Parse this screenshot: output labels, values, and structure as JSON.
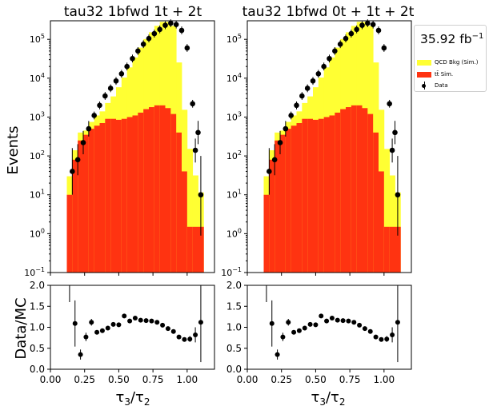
{
  "colors": {
    "qcd": "#ffff33",
    "ttbar": "#ff3311",
    "data": "#000000"
  },
  "legend": {
    "lumi": "35.92 fb",
    "lumi_unit_exp": "−1",
    "entries": [
      {
        "label": "QCD Bkg (Sim.)",
        "kind": "qcd"
      },
      {
        "label": "tt̄ Sim.",
        "kind": "ttbar"
      },
      {
        "label": "Data",
        "kind": "data"
      }
    ]
  },
  "ylabel_top": "Events",
  "ylabel_bottom": "Data/MC",
  "xlabel": "τ3/τ2",
  "chart_data": [
    {
      "type": "bar",
      "title": "tau32  1bfwd 1t + 2t",
      "scale": "log",
      "ylim": [
        0.1,
        300000
      ],
      "xlim": [
        0.0,
        1.2
      ],
      "bin_edges": [
        0.12,
        0.16,
        0.2,
        0.24,
        0.28,
        0.32,
        0.36,
        0.4,
        0.44,
        0.48,
        0.52,
        0.56,
        0.6,
        0.64,
        0.68,
        0.72,
        0.76,
        0.8,
        0.84,
        0.88,
        0.92,
        0.96,
        1.0,
        1.04,
        1.08,
        1.12
      ],
      "series": [
        {
          "name": "QCD Bkg (Sim.)",
          "values": [
            20,
            60,
            150,
            100,
            250,
            500,
            700,
            1400,
            2500,
            5000,
            9500,
            18000,
            33000,
            60000,
            100000,
            150000,
            220000,
            280000,
            280000,
            220000,
            25000,
            1500,
            150,
            30,
            10
          ]
        },
        {
          "name": "tt̄ Sim.",
          "values": [
            10,
            80,
            250,
            350,
            500,
            600,
            700,
            900,
            900,
            850,
            900,
            1000,
            1100,
            1300,
            1600,
            1800,
            2000,
            2000,
            1700,
            1200,
            400,
            40,
            1.5,
            1.5,
            1.5
          ]
        },
        {
          "name": "Data",
          "x": [
            0.16,
            0.2,
            0.24,
            0.28,
            0.32,
            0.36,
            0.4,
            0.44,
            0.48,
            0.52,
            0.56,
            0.6,
            0.64,
            0.68,
            0.72,
            0.76,
            0.8,
            0.84,
            0.88,
            0.92,
            0.96,
            1.0,
            1.04,
            1.08
          ],
          "values": [
            40,
            80,
            220,
            500,
            1100,
            2000,
            3500,
            5500,
            8500,
            13000,
            20000,
            32000,
            50000,
            75000,
            105000,
            140000,
            180000,
            230000,
            260000,
            240000,
            170000,
            60000,
            2200,
            400
          ]
        },
        {
          "name": "Data errors",
          "values": [
            0.6,
            0.4,
            0.3,
            0.2,
            0.1,
            0.1,
            0.1,
            0.1,
            0.1,
            0.1,
            0.1,
            0.1,
            0.1,
            0.1,
            0.1,
            0.1,
            0.1,
            0.1,
            0.1,
            0.1,
            0.1,
            0.1,
            0.1,
            0.3
          ]
        }
      ],
      "extra_points": [
        {
          "x": 1.06,
          "y": 140,
          "err": 0.3
        },
        {
          "x": 1.1,
          "y": 10,
          "err": 1.0
        }
      ],
      "ratio": {
        "ylim": [
          0.0,
          2.0
        ],
        "x": [
          0.14,
          0.18,
          0.22,
          0.26,
          0.3,
          0.34,
          0.38,
          0.42,
          0.46,
          0.5,
          0.54,
          0.58,
          0.62,
          0.66,
          0.7,
          0.74,
          0.78,
          0.82,
          0.86,
          0.9,
          0.94,
          0.98,
          1.02,
          1.06,
          1.1
        ],
        "values": [
          null,
          1.09,
          0.35,
          0.77,
          1.12,
          0.88,
          0.92,
          0.98,
          1.07,
          1.06,
          1.27,
          1.15,
          1.22,
          1.17,
          1.16,
          1.15,
          1.12,
          1.05,
          0.97,
          0.9,
          0.77,
          0.71,
          0.72,
          0.82,
          1.12
        ],
        "errors": [
          1.0,
          0.55,
          0.12,
          0.1,
          0.08,
          0.05,
          0.04,
          0.03,
          0.03,
          0.03,
          0.02,
          0.02,
          0.02,
          0.02,
          0.02,
          0.02,
          0.02,
          0.02,
          0.02,
          0.02,
          0.02,
          0.03,
          0.07,
          0.18,
          0.95
        ]
      }
    },
    {
      "type": "bar",
      "title": "tau32  1bfwd 0t + 1t + 2t",
      "scale": "log",
      "ylim": [
        0.1,
        300000
      ],
      "xlim": [
        0.0,
        1.2
      ],
      "ratio": {
        "ylim": [
          0.0,
          2.0
        ]
      }
    }
  ],
  "ticks": {
    "x": [
      "0.00",
      "0.25",
      "0.50",
      "0.75",
      "1.00"
    ],
    "x_values": [
      0.0,
      0.25,
      0.5,
      0.75,
      1.0
    ],
    "ratio_y": [
      "0.0",
      "0.5",
      "1.0",
      "1.5",
      "2.0"
    ],
    "ratio_y_values": [
      0.0,
      0.5,
      1.0,
      1.5,
      2.0
    ],
    "log_y_exponents": [
      -1,
      0,
      1,
      2,
      3,
      4,
      5
    ]
  }
}
